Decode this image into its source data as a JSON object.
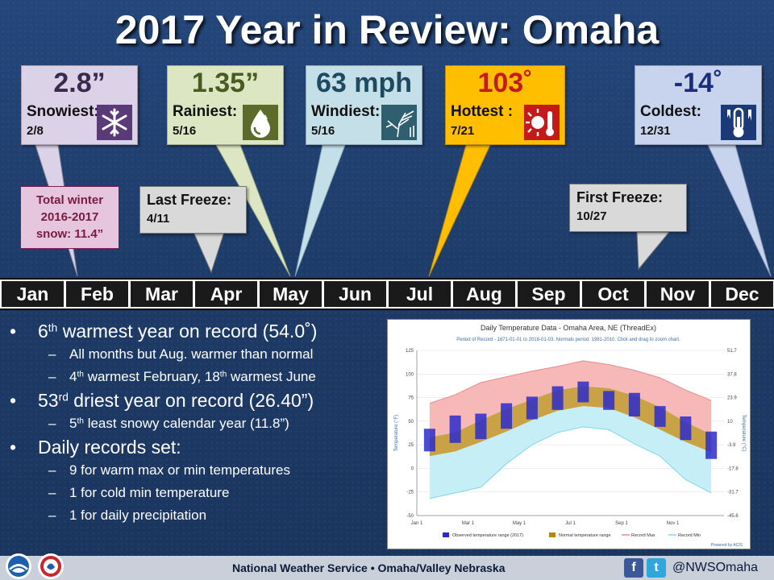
{
  "title": "2017 Year in Review: Omaha",
  "highlights": [
    {
      "value": "2.8”",
      "label": "Snowiest:",
      "date": "2/8",
      "icon": "snowflake-icon",
      "bg": "#dcd2e8"
    },
    {
      "value": "1.35”",
      "label": "Rainiest:",
      "date": "5/16",
      "icon": "raindrop-icon",
      "bg": "#dde6c2"
    },
    {
      "value": "63 mph",
      "label": "Windiest:",
      "date": "5/16",
      "icon": "wind-tree-icon",
      "bg": "#c5dfe8"
    },
    {
      "value": "103˚",
      "label": "Hottest :",
      "date": "7/21",
      "icon": "sun-thermometer-icon",
      "bg": "#ffbf00"
    },
    {
      "value": "-14˚",
      "label": "Coldest:",
      "date": "12/31",
      "icon": "thermometer-icon",
      "bg": "#c8d4ee"
    }
  ],
  "freezes": {
    "last": {
      "label": "Last Freeze:",
      "date": "4/11"
    },
    "first": {
      "label": "First Freeze:",
      "date": "10/27"
    }
  },
  "winter_total": {
    "line1": "Total winter",
    "line2": "2016-2017",
    "line3": "snow: 11.4”"
  },
  "months": [
    "Jan",
    "Feb",
    "Mar",
    "Apr",
    "May",
    "Jun",
    "Jul",
    "Aug",
    "Sep",
    "Oct",
    "Nov",
    "Dec"
  ],
  "stats": {
    "b1": {
      "ord_num": "6",
      "ord_suf": "th",
      "rest": " warmest year on record (54.0˚)"
    },
    "b1_sub1": "All months but Aug. warmer than normal",
    "b1_sub2": {
      "a_num": "4",
      "a_suf": "th",
      "a_rest": " warmest February, ",
      "b_num": "18",
      "b_suf": "th",
      "b_rest": " warmest June"
    },
    "b2": {
      "ord_num": "53",
      "ord_suf": "rd",
      "rest": " driest year on record (26.40”)"
    },
    "b2_sub1": {
      "ord_num": "5",
      "ord_suf": "th",
      "rest": " least snowy calendar year (11.8”)"
    },
    "b3": "Daily records set:",
    "b3_sub1": "9 for warm max or min temperatures",
    "b3_sub2": "1 for cold min temperature",
    "b3_sub3": "1 for daily precipitation"
  },
  "footer": {
    "text": "National Weather Service • Omaha/Valley Nebraska",
    "handle": "@NWSOmaha",
    "facebook": "f",
    "twitter": "t"
  },
  "chart_data": {
    "type": "area",
    "title": "Daily Temperature Data - Omaha Area, NE (ThreadEx)",
    "subtitle": "Period of Record - 1871-01-01 to 2018-01-03. Normals period: 1981-2010. Click and drag to zoom chart.",
    "ylabel": "Temperature (°F)",
    "y2label": "Temperature (°C)",
    "ylim": [
      -50,
      125
    ],
    "yticks": [
      "125",
      "100",
      "75",
      "50",
      "25",
      "0",
      "-25",
      "-50"
    ],
    "y2ticks": [
      "51.7",
      "37.8",
      "23.9",
      "10",
      "-3.9",
      "-17.8",
      "-31.7",
      "-45.6"
    ],
    "xticks": [
      "Jan 1",
      "Mar 1",
      "May 1",
      "Jul 1",
      "Sep 1",
      "Nov 1"
    ],
    "month_index": [
      1,
      2,
      3,
      4,
      5,
      6,
      7,
      8,
      9,
      10,
      11,
      12
    ],
    "normal_max": [
      33,
      38,
      51,
      63,
      73,
      83,
      87,
      85,
      77,
      65,
      49,
      36
    ],
    "normal_min": [
      13,
      18,
      28,
      39,
      51,
      61,
      66,
      64,
      54,
      41,
      28,
      17
    ],
    "record_max": [
      69,
      78,
      91,
      97,
      103,
      108,
      114,
      110,
      104,
      96,
      83,
      72
    ],
    "record_min": [
      -32,
      -26,
      -20,
      5,
      25,
      38,
      44,
      41,
      26,
      13,
      -12,
      -26
    ],
    "observed_max_2017": [
      42,
      56,
      58,
      69,
      76,
      87,
      92,
      82,
      80,
      66,
      55,
      39
    ],
    "observed_min_2017": [
      18,
      27,
      31,
      42,
      52,
      62,
      70,
      62,
      55,
      44,
      30,
      10
    ],
    "legend": [
      "Observed temperature range (2017)",
      "Normal temperature range",
      "Record Max",
      "Record Min"
    ],
    "credit": "Powered by ACIS",
    "colors": {
      "observed": "#2b2bcc",
      "normal": "#b8860b",
      "record_max": "#e88a8a",
      "record_min": "#7fd7e6"
    }
  }
}
